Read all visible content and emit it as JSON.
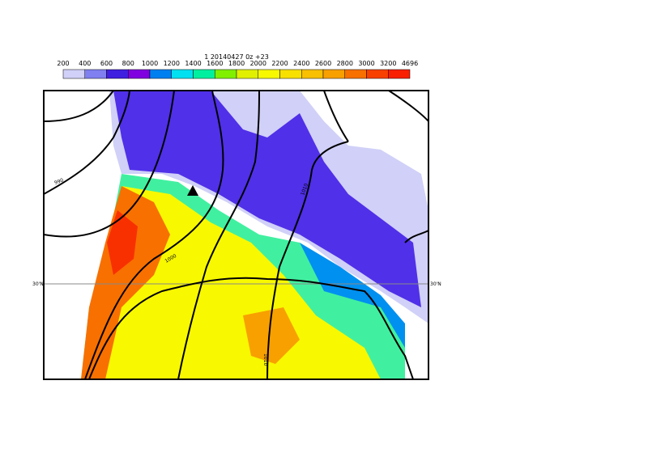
{
  "title": "1 20140427 0z +23",
  "colorbar": {
    "labels": [
      200,
      400,
      600,
      800,
      1000,
      1200,
      1400,
      1600,
      1800,
      2000,
      2200,
      2400,
      2600,
      2800,
      3000,
      3200,
      4696
    ],
    "colors": [
      "#d0d0f8",
      "#8080f0",
      "#4020e0",
      "#8000e0",
      "#0080f0",
      "#00e0f0",
      "#00f0a0",
      "#80f000",
      "#e0f000",
      "#f8f800",
      "#f8e000",
      "#f8c000",
      "#f8a000",
      "#f87000",
      "#f84000",
      "#f82000"
    ]
  },
  "contour_labels": [
    "990",
    "1000",
    "1010",
    "1010"
  ],
  "lat_labels": [
    "30'N",
    "30'N"
  ]
}
